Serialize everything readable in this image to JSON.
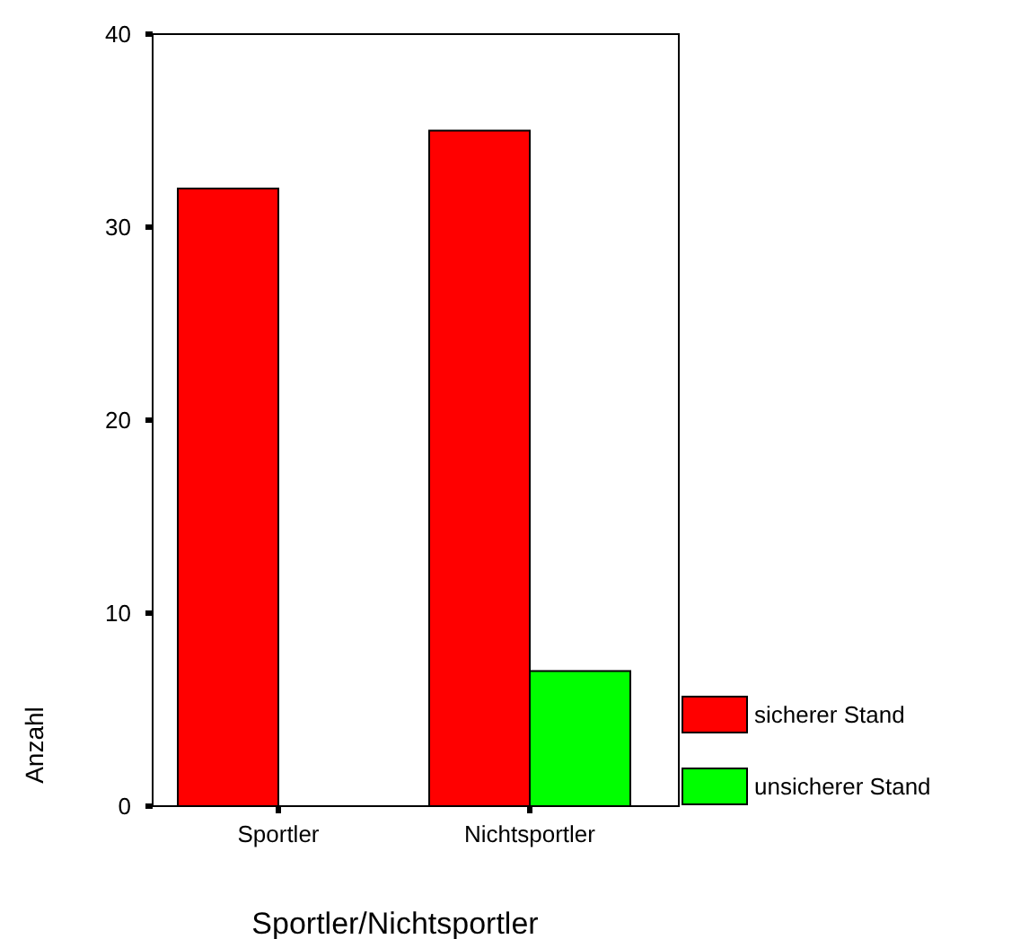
{
  "chart_data": {
    "type": "bar",
    "xlabel": "Sportler/Nichtsportler",
    "ylabel": "Anzahl",
    "categories": [
      "Sportler",
      "Nichtsportler"
    ],
    "series": [
      {
        "name": "sicherer Stand",
        "color": "#ff0000",
        "values": [
          32,
          35
        ]
      },
      {
        "name": "unsicherer Stand",
        "color": "#00ff00",
        "values": [
          0,
          7
        ]
      }
    ],
    "ylim": [
      0,
      40
    ],
    "yticks": [
      0,
      10,
      20,
      30,
      40
    ],
    "grid": false,
    "legend": "right"
  }
}
